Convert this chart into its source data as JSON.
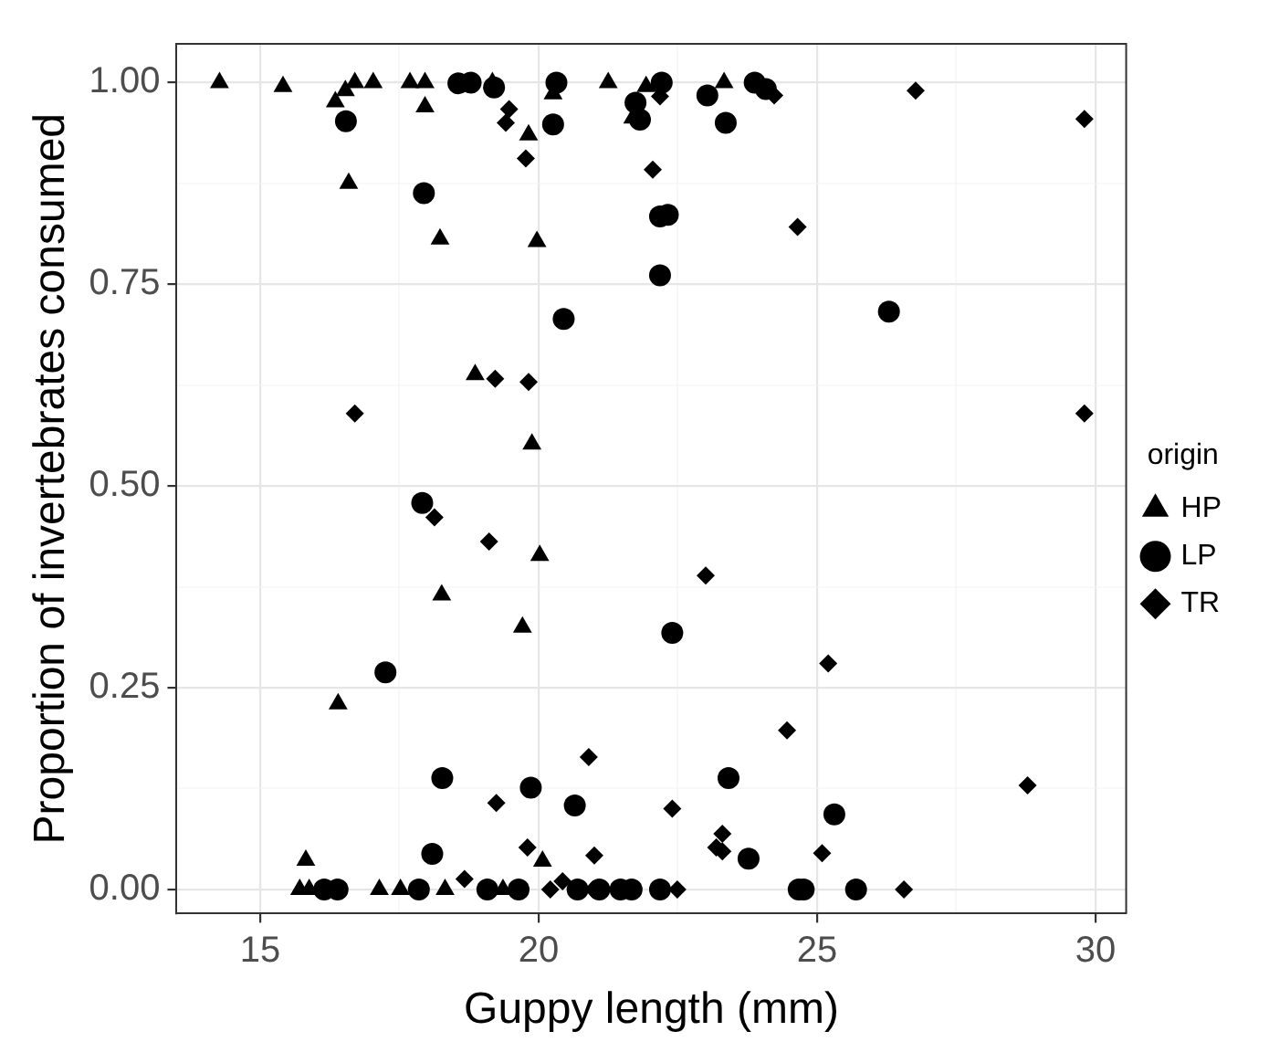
{
  "chart_data": {
    "type": "scatter",
    "xlabel": "Guppy length (mm)",
    "ylabel": "Proportion of invertebrates consumed",
    "legend_title": "origin",
    "legend": "right",
    "grid": true,
    "xlim": [
      13.5,
      30.55
    ],
    "ylim": [
      -0.03,
      1.048
    ],
    "xticks": [
      15,
      {
        "value": 17.5,
        "label": null
      },
      20,
      {
        "value": 22.5,
        "label": null
      },
      25,
      {
        "value": 27.5,
        "label": null
      },
      30
    ],
    "yticks": [
      {
        "value": 0,
        "label": "0.00"
      },
      {
        "value": 0.125,
        "label": null
      },
      {
        "value": 0.25,
        "label": "0.25"
      },
      {
        "value": 0.375,
        "label": null
      },
      {
        "value": 0.5,
        "label": "0.50"
      },
      {
        "value": 0.625,
        "label": null
      },
      {
        "value": 0.75,
        "label": "0.75"
      },
      {
        "value": 0.875,
        "label": null
      },
      {
        "value": 1,
        "label": "1.00"
      }
    ],
    "series": [
      {
        "name": "HP",
        "color": "#000000",
        "marker": "triangle",
        "x": [
          14.27,
          15.41,
          16.35,
          16.53,
          16.7,
          17.03,
          17.69,
          17.96,
          17.96,
          19.17,
          19.82,
          20.26,
          21.25,
          16.59,
          18.23,
          19.97,
          18.86,
          19.88,
          21.93,
          21.69,
          23.33,
          20.02,
          18.26,
          19.71,
          16.4,
          15.82,
          20.07,
          15.71,
          15.88,
          17.14,
          17.52,
          18.32,
          19.36
        ],
        "values": [
          1.0,
          0.995,
          0.976,
          0.99,
          1.0,
          1.0,
          1.0,
          1.0,
          0.97,
          1.0,
          0.935,
          0.986,
          1.0,
          0.875,
          0.806,
          0.803,
          0.638,
          0.552,
          0.995,
          0.956,
          1.0,
          0.414,
          0.365,
          0.325,
          0.23,
          0.036,
          0.035,
          0.0,
          0.0,
          0.0,
          0.0,
          0.0,
          0.0
        ]
      },
      {
        "name": "LP",
        "color": "#000000",
        "marker": "circle",
        "x": [
          16.54,
          18.56,
          18.78,
          19.2,
          20.26,
          20.32,
          17.94,
          20.45,
          22.21,
          21.74,
          21.82,
          23.03,
          23.36,
          23.88,
          24.08,
          22.18,
          22.32,
          22.18,
          26.29,
          17.91,
          17.25,
          18.27,
          19.86,
          20.65,
          18.09,
          22.4,
          23.41,
          25.31,
          23.77,
          16.15,
          16.39,
          17.85,
          19.08,
          19.64,
          20.7,
          21.09,
          21.47,
          21.67,
          22.18,
          24.67,
          24.76,
          25.7
        ],
        "values": [
          0.952,
          0.999,
          1.0,
          0.994,
          0.948,
          1.0,
          0.863,
          0.707,
          1.0,
          0.975,
          0.954,
          0.984,
          0.95,
          1.0,
          0.992,
          0.834,
          0.836,
          0.761,
          0.716,
          0.479,
          0.269,
          0.138,
          0.126,
          0.104,
          0.044,
          0.318,
          0.138,
          0.093,
          0.038,
          0.0,
          0.0,
          0.0,
          0.0,
          0.0,
          0.0,
          0.0,
          0.0,
          0.0,
          0.0,
          0.0,
          0.0,
          0.0
        ]
      },
      {
        "name": "TR",
        "color": "#000000",
        "marker": "diamond",
        "x": [
          19.47,
          19.41,
          19.77,
          19.22,
          19.82,
          16.7,
          22.18,
          24.23,
          26.77,
          22.05,
          24.65,
          29.8,
          29.8,
          18.13,
          19.11,
          20.9,
          19.24,
          19.8,
          21.0,
          18.67,
          20.43,
          20.21,
          20.98,
          22.49,
          26.56,
          23.0,
          24.46,
          22.4,
          23.3,
          23.19,
          23.3,
          25.09,
          28.78,
          25.2
        ],
        "values": [
          0.967,
          0.95,
          0.906,
          0.633,
          0.629,
          0.59,
          0.983,
          0.984,
          0.99,
          0.892,
          0.821,
          0.955,
          0.59,
          0.461,
          0.431,
          0.164,
          0.107,
          0.052,
          0.042,
          0.013,
          0.01,
          0.0,
          0.0,
          0.0,
          0.0,
          0.389,
          0.197,
          0.1,
          0.069,
          0.052,
          0.047,
          0.045,
          0.129,
          0.28
        ]
      }
    ]
  }
}
